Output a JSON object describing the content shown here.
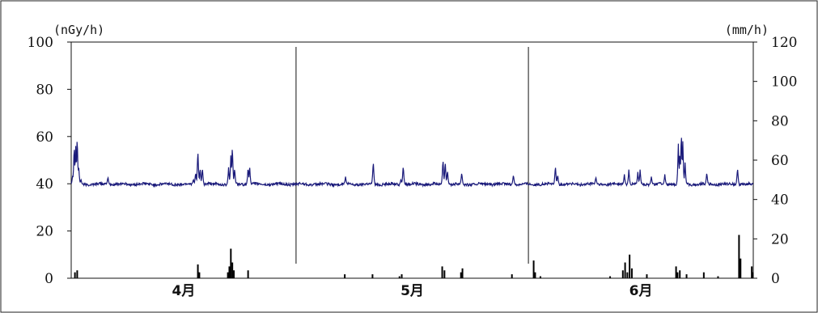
{
  "chart_data": {
    "type": "line+bar",
    "left_axis": {
      "unit": "(nGy/h)",
      "ylim": [
        0,
        100
      ],
      "ticks": [
        "0",
        "20",
        "40",
        "60",
        "80",
        "100"
      ]
    },
    "right_axis": {
      "unit": "(mm/h)",
      "ylim": [
        0,
        120
      ],
      "ticks": [
        "0",
        "20",
        "40",
        "60",
        "80",
        "100",
        "120"
      ]
    },
    "months": [
      {
        "label": "4月",
        "start_day": 0,
        "days": 30
      },
      {
        "label": "5月",
        "start_day": 30,
        "days": 31
      },
      {
        "label": "6月",
        "start_day": 61,
        "days": 30
      }
    ],
    "x_range_days": [
      0,
      91
    ],
    "month_dividers_day": [
      30,
      61
    ],
    "dose_rate": {
      "axis": "left",
      "color": "#1a1a7a",
      "baseline": 39.8,
      "spikes": [
        {
          "day": 0.2,
          "value": 44
        },
        {
          "day": 0.4,
          "value": 57
        },
        {
          "day": 0.6,
          "value": 56
        },
        {
          "day": 0.8,
          "value": 61
        },
        {
          "day": 1.0,
          "value": 48
        },
        {
          "day": 1.3,
          "value": 42
        },
        {
          "day": 4.9,
          "value": 43
        },
        {
          "day": 16.3,
          "value": 42
        },
        {
          "day": 16.6,
          "value": 45
        },
        {
          "day": 16.9,
          "value": 55
        },
        {
          "day": 17.2,
          "value": 47
        },
        {
          "day": 17.5,
          "value": 47
        },
        {
          "day": 21.0,
          "value": 47
        },
        {
          "day": 21.3,
          "value": 52
        },
        {
          "day": 21.5,
          "value": 57
        },
        {
          "day": 21.8,
          "value": 47
        },
        {
          "day": 23.6,
          "value": 47
        },
        {
          "day": 23.8,
          "value": 48
        },
        {
          "day": 36.6,
          "value": 43
        },
        {
          "day": 40.3,
          "value": 50
        },
        {
          "day": 44.0,
          "value": 42
        },
        {
          "day": 44.3,
          "value": 48
        },
        {
          "day": 49.6,
          "value": 51
        },
        {
          "day": 49.9,
          "value": 50
        },
        {
          "day": 50.2,
          "value": 46
        },
        {
          "day": 52.1,
          "value": 45
        },
        {
          "day": 59.0,
          "value": 44
        },
        {
          "day": 64.6,
          "value": 48
        },
        {
          "day": 64.9,
          "value": 44
        },
        {
          "day": 70.0,
          "value": 43
        },
        {
          "day": 73.8,
          "value": 44
        },
        {
          "day": 74.4,
          "value": 46
        },
        {
          "day": 75.6,
          "value": 45
        },
        {
          "day": 75.9,
          "value": 46
        },
        {
          "day": 77.4,
          "value": 43
        },
        {
          "day": 79.2,
          "value": 44
        },
        {
          "day": 81.0,
          "value": 57
        },
        {
          "day": 81.2,
          "value": 54
        },
        {
          "day": 81.4,
          "value": 63
        },
        {
          "day": 81.6,
          "value": 58
        },
        {
          "day": 81.9,
          "value": 49
        },
        {
          "day": 84.8,
          "value": 45
        },
        {
          "day": 88.9,
          "value": 47
        }
      ]
    },
    "precipitation": {
      "axis": "right",
      "color": "#000000",
      "bars": [
        {
          "day": 0.5,
          "value": 3
        },
        {
          "day": 0.8,
          "value": 4
        },
        {
          "day": 16.9,
          "value": 7
        },
        {
          "day": 17.1,
          "value": 3
        },
        {
          "day": 20.9,
          "value": 3
        },
        {
          "day": 21.1,
          "value": 6
        },
        {
          "day": 21.3,
          "value": 15
        },
        {
          "day": 21.5,
          "value": 8
        },
        {
          "day": 21.7,
          "value": 4
        },
        {
          "day": 23.6,
          "value": 4
        },
        {
          "day": 36.5,
          "value": 2
        },
        {
          "day": 40.2,
          "value": 2
        },
        {
          "day": 43.8,
          "value": 1
        },
        {
          "day": 44.1,
          "value": 2
        },
        {
          "day": 49.5,
          "value": 6
        },
        {
          "day": 49.8,
          "value": 4
        },
        {
          "day": 52.0,
          "value": 3
        },
        {
          "day": 52.2,
          "value": 5
        },
        {
          "day": 58.8,
          "value": 2
        },
        {
          "day": 61.7,
          "value": 9
        },
        {
          "day": 61.9,
          "value": 3
        },
        {
          "day": 62.6,
          "value": 1
        },
        {
          "day": 71.9,
          "value": 1
        },
        {
          "day": 73.6,
          "value": 4
        },
        {
          "day": 73.9,
          "value": 8
        },
        {
          "day": 74.2,
          "value": 3
        },
        {
          "day": 74.5,
          "value": 12
        },
        {
          "day": 74.8,
          "value": 5
        },
        {
          "day": 76.8,
          "value": 2
        },
        {
          "day": 80.7,
          "value": 6
        },
        {
          "day": 80.9,
          "value": 3
        },
        {
          "day": 81.2,
          "value": 4
        },
        {
          "day": 82.1,
          "value": 2
        },
        {
          "day": 84.4,
          "value": 3
        },
        {
          "day": 86.3,
          "value": 1
        },
        {
          "day": 89.1,
          "value": 22
        },
        {
          "day": 89.3,
          "value": 10
        },
        {
          "day": 90.8,
          "value": 6
        },
        {
          "day": 90.9,
          "value": 3
        }
      ]
    }
  }
}
